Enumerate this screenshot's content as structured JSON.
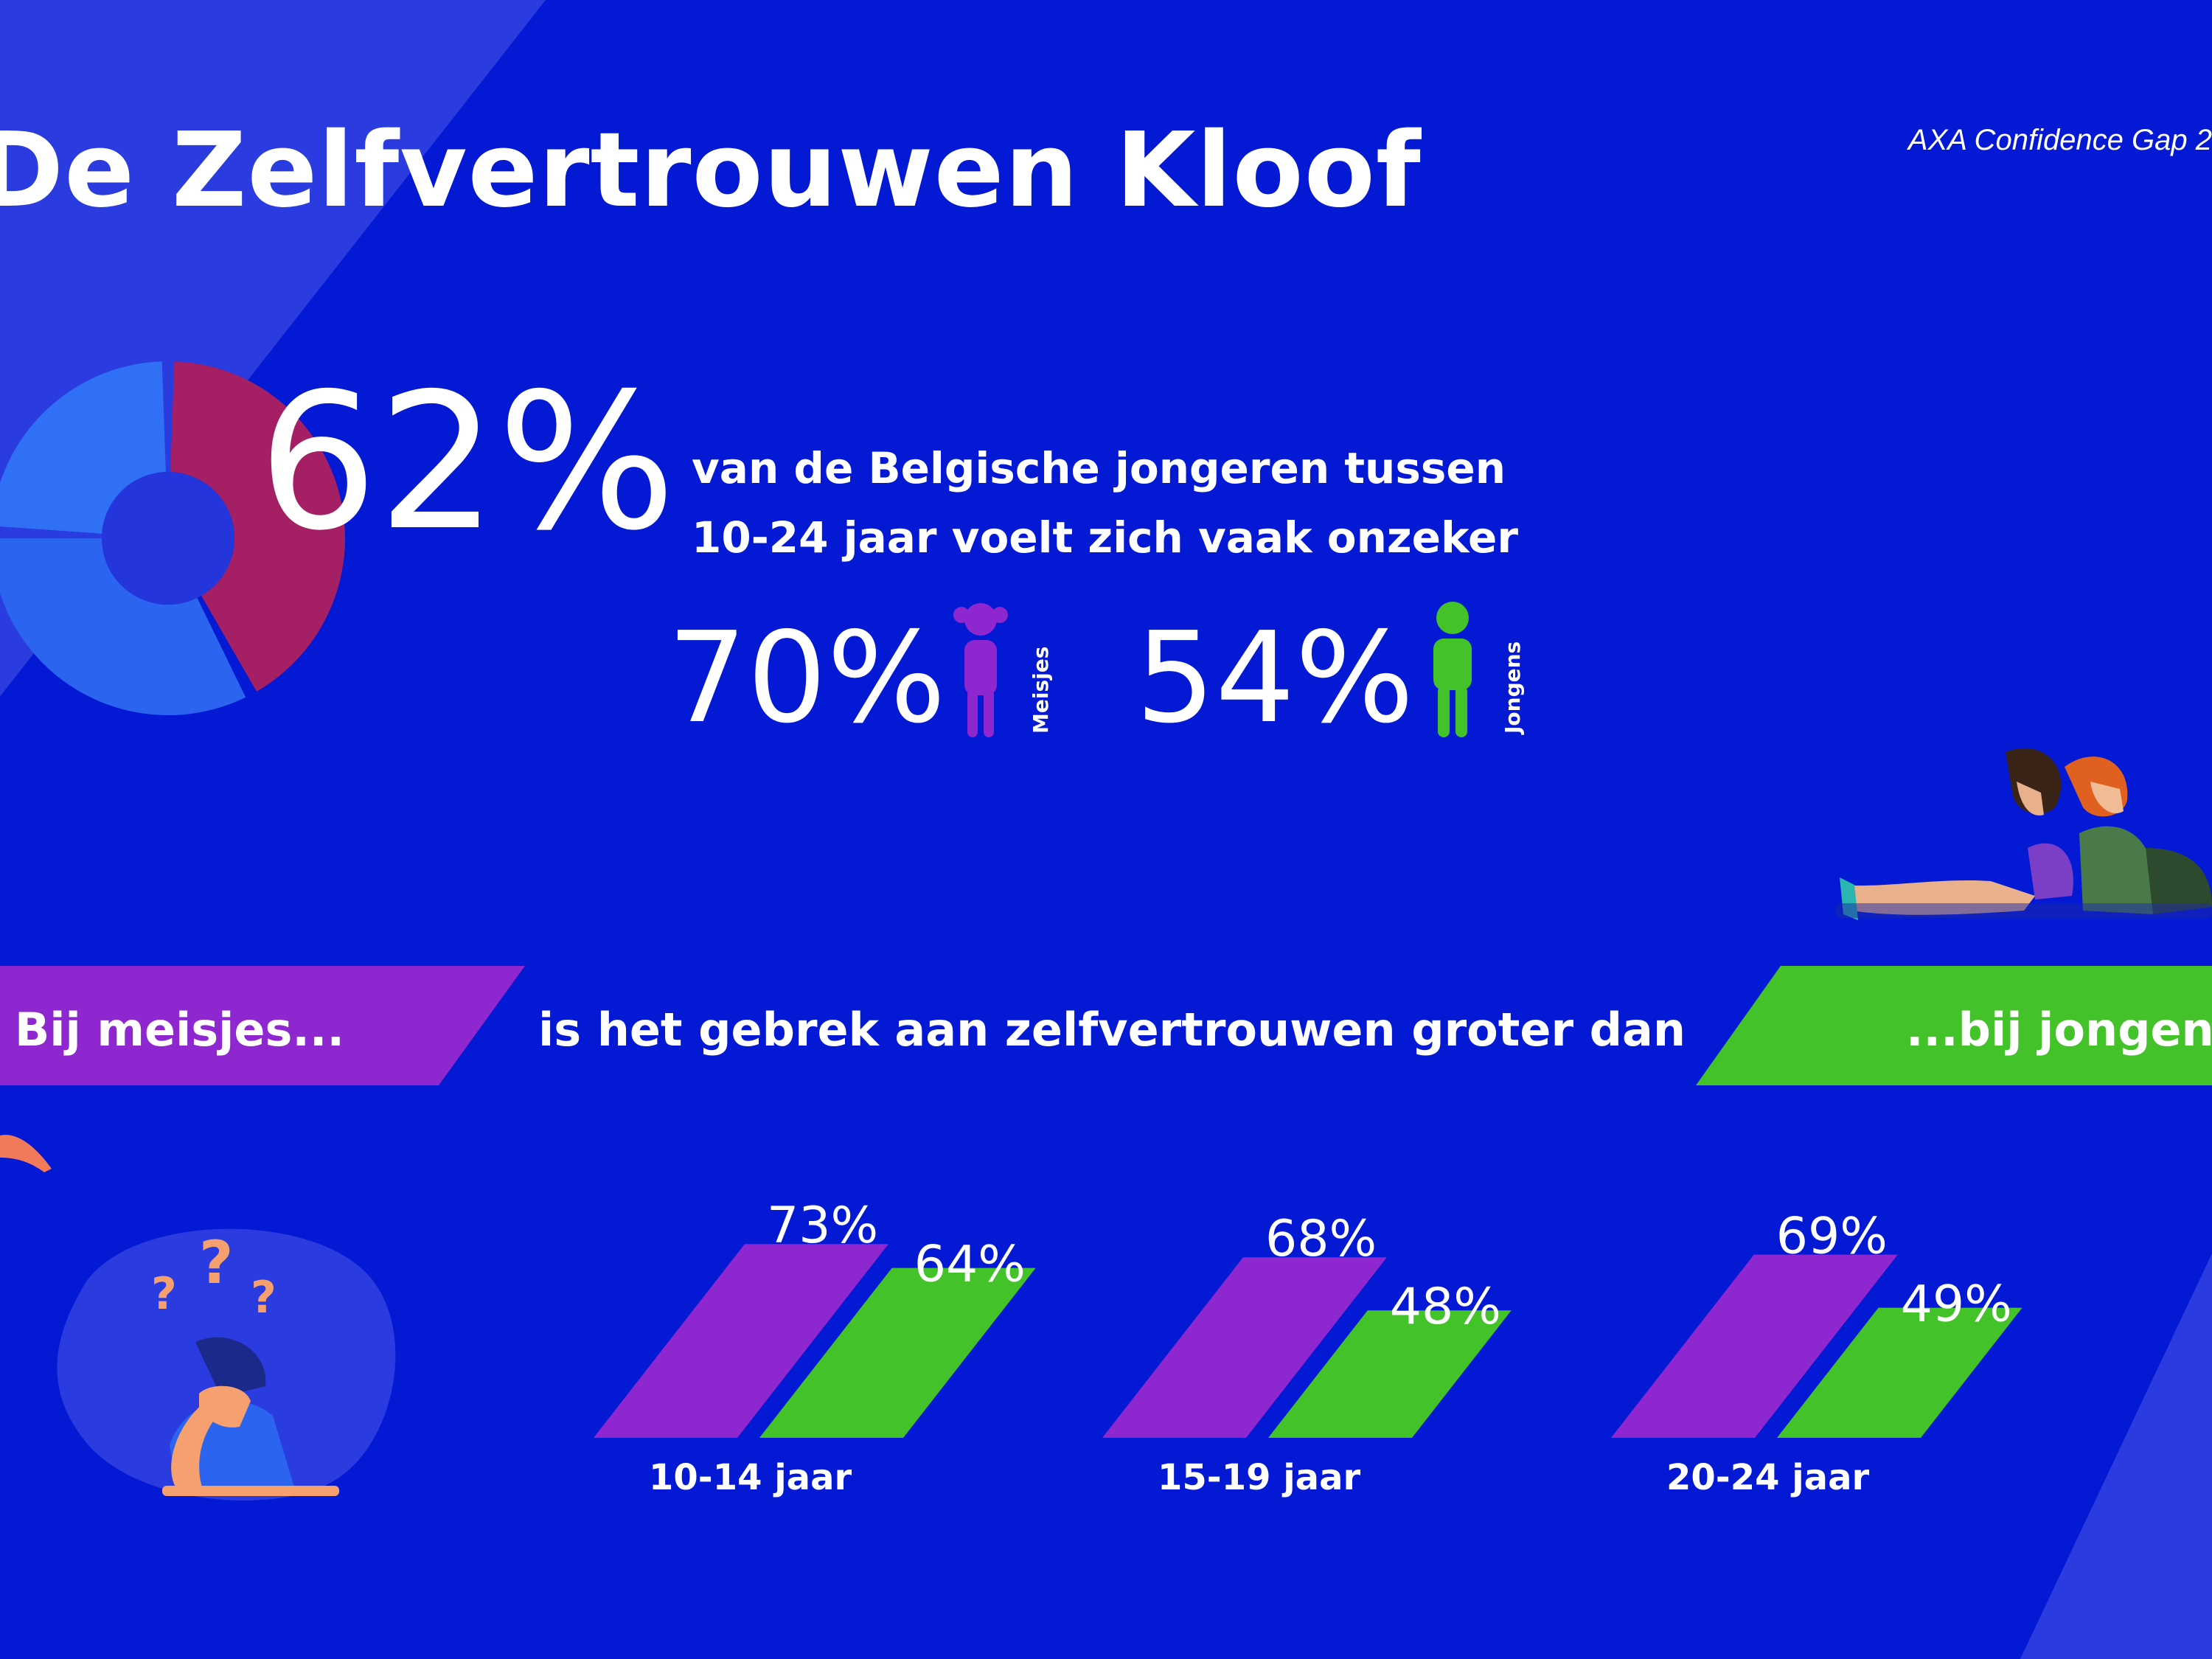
{
  "title": "De Zelfvertrouwen Kloof",
  "source": "AXA Confidence Gap 2",
  "headline": {
    "percent": "62%",
    "text_line1": "van de Belgische jongeren tussen",
    "text_line2": "10-24 jaar voelt zich vaak onzeker"
  },
  "gender_stats": {
    "girls": {
      "percent": "70%",
      "label": "Meisjes"
    },
    "boys": {
      "percent": "54%",
      "label": "Jongens"
    }
  },
  "banner": {
    "girls": "Bij meisjes...",
    "middle": "is het gebrek aan zelfvertrouwen groter dan",
    "boys": "...bij jongens"
  },
  "colors": {
    "background": "#0319d3",
    "girls": "#8e27cf",
    "boys": "#44c22a",
    "donut_red": "#a41f63",
    "donut_blue": "#2b64ee"
  },
  "chart_data": {
    "type": "bar",
    "title": "",
    "categories": [
      "10-14 jaar",
      "15-19 jaar",
      "20-24 jaar"
    ],
    "series": [
      {
        "name": "Meisjes",
        "values": [
          73,
          68,
          69
        ],
        "labels": [
          "73%",
          "68%",
          "69%"
        ]
      },
      {
        "name": "Jongens",
        "values": [
          64,
          48,
          49
        ],
        "labels": [
          "64%",
          "48%",
          "49%"
        ]
      }
    ],
    "ylim": [
      0,
      100
    ],
    "xlabel": "",
    "ylabel": ""
  }
}
